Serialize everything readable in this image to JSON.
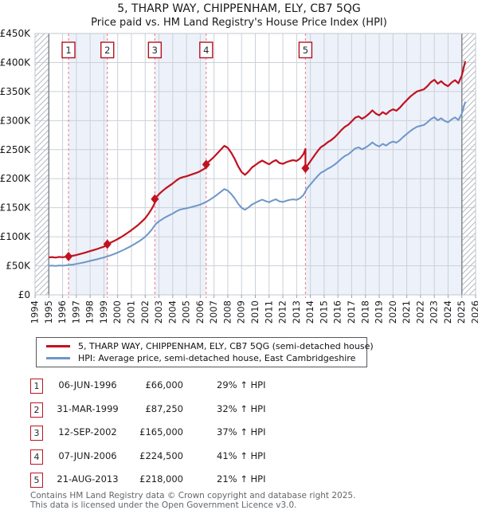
{
  "header": {
    "title": "5, THARP WAY, CHIPPENHAM, ELY, CB7 5QG",
    "subtitle": "Price paid vs. HM Land Registry's House Price Index (HPI)"
  },
  "legend": {
    "series": [
      {
        "label": "5, THARP WAY, CHIPPENHAM, ELY, CB7 5QG (semi-detached house)",
        "color": "#c1121f"
      },
      {
        "label": "HPI: Average price, semi-detached house, East Cambridgeshire",
        "color": "#6d97c8"
      }
    ]
  },
  "sales": {
    "rows": [
      {
        "num": "1",
        "date": "06-JUN-1996",
        "price": "£66,000",
        "vs_hpi": "29% ↑ HPI"
      },
      {
        "num": "2",
        "date": "31-MAR-1999",
        "price": "£87,250",
        "vs_hpi": "32% ↑ HPI"
      },
      {
        "num": "3",
        "date": "12-SEP-2002",
        "price": "£165,000",
        "vs_hpi": "37% ↑ HPI"
      },
      {
        "num": "4",
        "date": "07-JUN-2006",
        "price": "£224,500",
        "vs_hpi": "41% ↑ HPI"
      },
      {
        "num": "5",
        "date": "21-AUG-2013",
        "price": "£218,000",
        "vs_hpi": "21% ↑ HPI"
      }
    ]
  },
  "footer": {
    "line1": "Contains HM Land Registry data © Crown copyright and database right 2025.",
    "line2": "This data is licensed under the Open Government Licence v3.0."
  },
  "chart_data": {
    "type": "line",
    "x_axis": {
      "range": [
        1994,
        2026
      ],
      "tick_step": 1
    },
    "y_axis": {
      "range_gbp_k": [
        0,
        450
      ],
      "tick_step_gbp_k": 50,
      "tick_labels": [
        "£0",
        "£50K",
        "£100K",
        "£150K",
        "£200K",
        "£250K",
        "£300K",
        "£350K",
        "£400K",
        "£450K"
      ]
    },
    "no_data_hatch": {
      "before_year": 1995.0,
      "after_year": 2025.0
    },
    "ownership_bands": {
      "color": "#edf1fa",
      "note": "alternating shaded periods between sales: sale1-sale2, sale3-sale4, sale5-data end"
    },
    "sales_points": [
      {
        "num": "1",
        "year": 1996.43,
        "price_gbp_k": 66,
        "pct_above_hpi": 29,
        "date": "06-JUN-1996"
      },
      {
        "num": "2",
        "year": 1999.25,
        "price_gbp_k": 87.25,
        "pct_above_hpi": 32,
        "date": "31-MAR-1999"
      },
      {
        "num": "3",
        "year": 2002.7,
        "price_gbp_k": 165,
        "pct_above_hpi": 37,
        "date": "12-SEP-2002"
      },
      {
        "num": "4",
        "year": 2006.43,
        "price_gbp_k": 224.5,
        "pct_above_hpi": 41,
        "date": "07-JUN-2006"
      },
      {
        "num": "5",
        "year": 2013.64,
        "price_gbp_k": 218,
        "pct_above_hpi": 21,
        "date": "21-AUG-2013"
      }
    ],
    "hpi_series": {
      "name": "HPI: Average price, semi-detached house, East Cambridgeshire",
      "color": "#6d97c8",
      "points_year_gbp_k": [
        [
          1995.0,
          50.0
        ],
        [
          1995.25,
          50.4
        ],
        [
          1995.5,
          49.8
        ],
        [
          1995.75,
          50.6
        ],
        [
          1996.0,
          50.2
        ],
        [
          1996.25,
          50.8
        ],
        [
          1996.5,
          51.6
        ],
        [
          1996.75,
          52.2
        ],
        [
          1997.0,
          53.2
        ],
        [
          1997.25,
          54.4
        ],
        [
          1997.5,
          55.6
        ],
        [
          1997.75,
          57.0
        ],
        [
          1998.0,
          58.4
        ],
        [
          1998.25,
          59.8
        ],
        [
          1998.5,
          61.2
        ],
        [
          1998.75,
          62.8
        ],
        [
          1999.0,
          64.3
        ],
        [
          1999.25,
          66.1
        ],
        [
          1999.5,
          68.2
        ],
        [
          1999.75,
          70.4
        ],
        [
          2000.0,
          72.8
        ],
        [
          2000.25,
          75.4
        ],
        [
          2000.5,
          78.2
        ],
        [
          2000.75,
          81.2
        ],
        [
          2001.0,
          84.4
        ],
        [
          2001.25,
          87.8
        ],
        [
          2001.5,
          91.4
        ],
        [
          2001.75,
          95.4
        ],
        [
          2002.0,
          100.0
        ],
        [
          2002.25,
          106.0
        ],
        [
          2002.5,
          113.0
        ],
        [
          2002.75,
          121.5
        ],
        [
          2003.0,
          126.5
        ],
        [
          2003.25,
          130.5
        ],
        [
          2003.5,
          134.0
        ],
        [
          2003.75,
          137.0
        ],
        [
          2004.0,
          140.0
        ],
        [
          2004.25,
          143.5
        ],
        [
          2004.5,
          146.5
        ],
        [
          2004.75,
          148.0
        ],
        [
          2005.0,
          149.0
        ],
        [
          2005.25,
          150.5
        ],
        [
          2005.5,
          152.0
        ],
        [
          2005.75,
          153.5
        ],
        [
          2006.0,
          155.5
        ],
        [
          2006.25,
          158.0
        ],
        [
          2006.5,
          161.0
        ],
        [
          2006.75,
          164.5
        ],
        [
          2007.0,
          168.5
        ],
        [
          2007.25,
          173.0
        ],
        [
          2007.5,
          177.5
        ],
        [
          2007.75,
          182.0
        ],
        [
          2008.0,
          179.5
        ],
        [
          2008.25,
          173.5
        ],
        [
          2008.5,
          166.0
        ],
        [
          2008.75,
          157.0
        ],
        [
          2009.0,
          150.0
        ],
        [
          2009.25,
          146.5
        ],
        [
          2009.5,
          150.5
        ],
        [
          2009.75,
          155.5
        ],
        [
          2010.0,
          158.5
        ],
        [
          2010.25,
          161.5
        ],
        [
          2010.5,
          164.0
        ],
        [
          2010.75,
          161.5
        ],
        [
          2011.0,
          159.5
        ],
        [
          2011.25,
          162.5
        ],
        [
          2011.5,
          164.5
        ],
        [
          2011.75,
          161.0
        ],
        [
          2012.0,
          160.0
        ],
        [
          2012.25,
          162.0
        ],
        [
          2012.5,
          163.5
        ],
        [
          2012.75,
          164.5
        ],
        [
          2013.0,
          163.5
        ],
        [
          2013.25,
          166.5
        ],
        [
          2013.5,
          172.0
        ],
        [
          2013.75,
          183.0
        ],
        [
          2014.0,
          190.0
        ],
        [
          2014.25,
          197.0
        ],
        [
          2014.5,
          204.0
        ],
        [
          2014.75,
          210.0
        ],
        [
          2015.0,
          213.0
        ],
        [
          2015.25,
          217.0
        ],
        [
          2015.5,
          220.0
        ],
        [
          2015.75,
          224.0
        ],
        [
          2016.0,
          229.0
        ],
        [
          2016.25,
          234.5
        ],
        [
          2016.5,
          239.0
        ],
        [
          2016.75,
          242.0
        ],
        [
          2017.0,
          247.0
        ],
        [
          2017.25,
          252.0
        ],
        [
          2017.5,
          254.0
        ],
        [
          2017.75,
          250.5
        ],
        [
          2018.0,
          253.5
        ],
        [
          2018.25,
          257.5
        ],
        [
          2018.5,
          262.5
        ],
        [
          2018.75,
          258.0
        ],
        [
          2019.0,
          255.5
        ],
        [
          2019.25,
          260.0
        ],
        [
          2019.5,
          257.0
        ],
        [
          2019.75,
          261.5
        ],
        [
          2020.0,
          264.0
        ],
        [
          2020.25,
          262.0
        ],
        [
          2020.5,
          266.5
        ],
        [
          2020.75,
          272.0
        ],
        [
          2021.0,
          277.0
        ],
        [
          2021.25,
          282.0
        ],
        [
          2021.5,
          286.0
        ],
        [
          2021.75,
          289.5
        ],
        [
          2022.0,
          291.0
        ],
        [
          2022.25,
          292.5
        ],
        [
          2022.5,
          297.0
        ],
        [
          2022.75,
          302.5
        ],
        [
          2023.0,
          306.0
        ],
        [
          2023.25,
          300.5
        ],
        [
          2023.5,
          304.0
        ],
        [
          2023.75,
          299.5
        ],
        [
          2024.0,
          297.0
        ],
        [
          2024.25,
          302.0
        ],
        [
          2024.5,
          305.5
        ],
        [
          2024.75,
          301.0
        ],
        [
          2025.0,
          312.0
        ],
        [
          2025.25,
          332.5
        ]
      ]
    },
    "price_line": {
      "name": "5, THARP WAY, CHIPPENHAM, ELY, CB7 5QG (semi-detached house)",
      "color": "#c1121f",
      "method": "HPI series scaled through each sale price; ratio carried forward between sales, producing a drop at sale 5"
    },
    "style": {
      "grid_color": "#ccd0d7",
      "frame_color": "#c3c7cf",
      "boundary_color": "#84888f",
      "hatch_color": "#b6bac2",
      "dashed_sale_line_color": "#ef8489",
      "marker_box_border": "#b5121f",
      "axis_text_color": "#16181c",
      "tick_color": "#9aa0a6"
    }
  }
}
